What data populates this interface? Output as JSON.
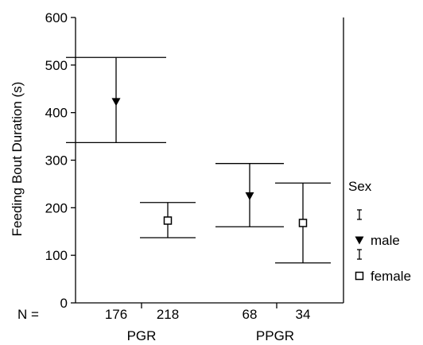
{
  "chart_data": {
    "type": "error-bar",
    "ylabel": "Feeding Bout Duration (s)",
    "ylim": [
      0,
      600
    ],
    "yticks": [
      0,
      100,
      200,
      300,
      400,
      500,
      600
    ],
    "n_label": "N =",
    "groups": [
      {
        "label": "PGR",
        "categories": [
          "176",
          "218"
        ]
      },
      {
        "label": "PPGR",
        "categories": [
          "68",
          "34"
        ]
      }
    ],
    "legend": {
      "title": "Sex",
      "position": "right",
      "entries": [
        {
          "marker": "filled-triangle-down",
          "label": "male"
        },
        {
          "marker": "open-square",
          "label": "female"
        }
      ]
    },
    "series": [
      {
        "name": "male",
        "marker": "filled-triangle-down",
        "points": [
          {
            "n": "176",
            "group": "PGR",
            "mean": 423,
            "lower": 337,
            "upper": 516
          },
          {
            "n": "68",
            "group": "PPGR",
            "mean": 225,
            "lower": 160,
            "upper": 293
          }
        ]
      },
      {
        "name": "female",
        "marker": "open-square",
        "points": [
          {
            "n": "218",
            "group": "PGR",
            "mean": 173,
            "lower": 137,
            "upper": 211
          },
          {
            "n": "34",
            "group": "PPGR",
            "mean": 168,
            "lower": 84,
            "upper": 252
          }
        ]
      }
    ],
    "colors": {
      "ink": "#000000",
      "background": "#ffffff"
    }
  }
}
